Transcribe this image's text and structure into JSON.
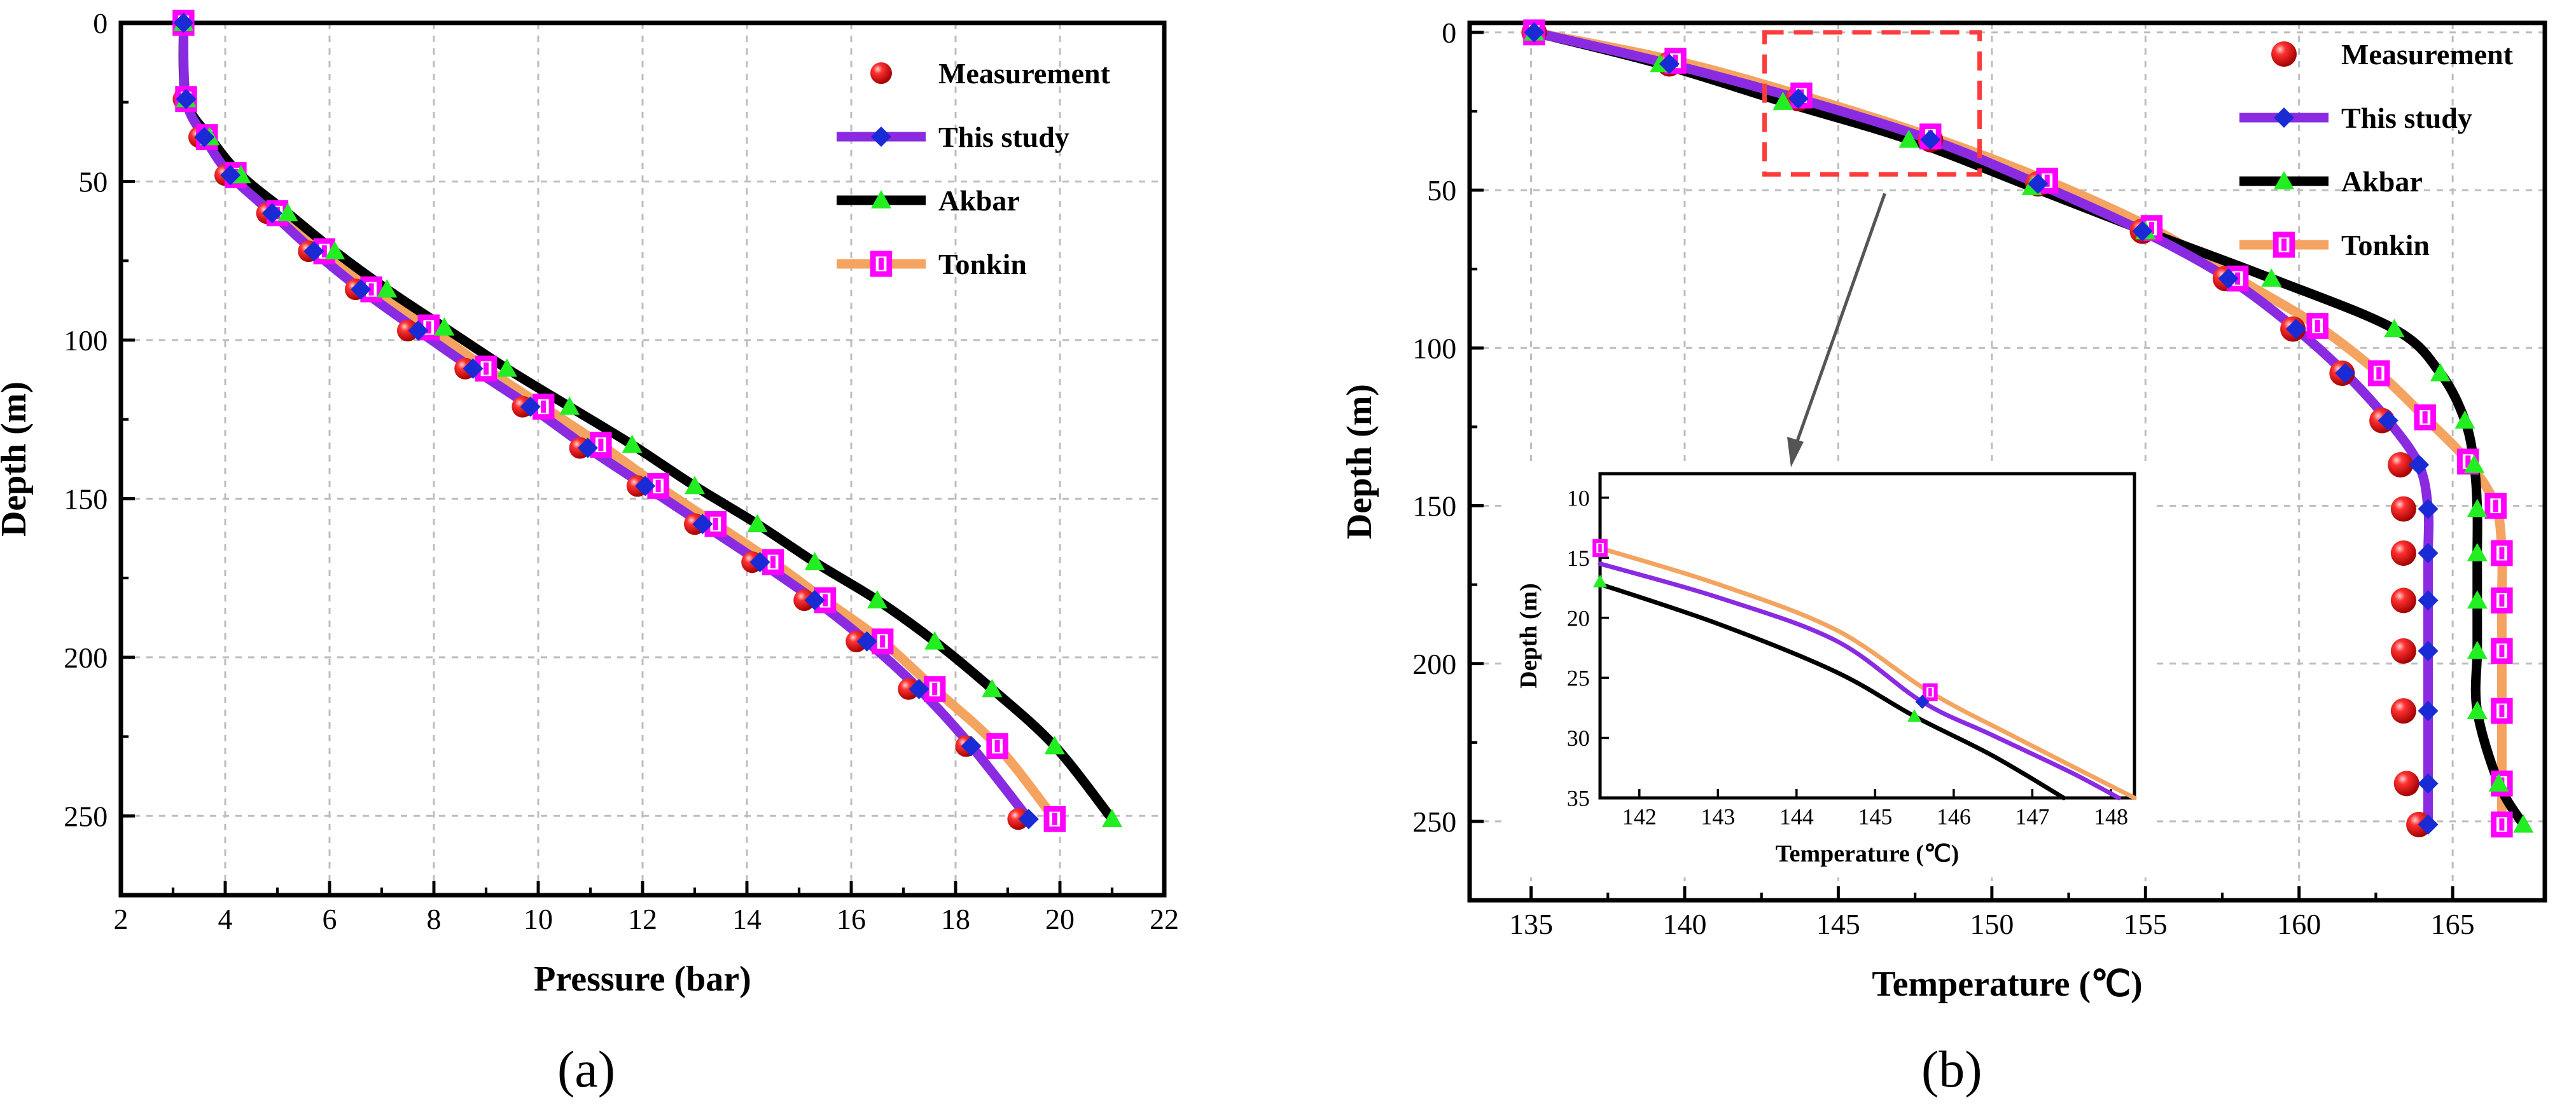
{
  "figure": {
    "colors": {
      "measurement": "#e60000",
      "this_study": "#8a2be2",
      "this_study_marker": "#1a2bd6",
      "akbar": "#000000",
      "akbar_marker": "#22ee22",
      "tonkin": "#f4a460",
      "tonkin_marker": "#ff00ff",
      "inset_box": "#ff3b3b",
      "grid": "#bdbdbd"
    },
    "panels": [
      {
        "label": "(a)"
      },
      {
        "label": "(b)"
      }
    ]
  },
  "chart_data": [
    {
      "type": "line",
      "panel": "(a)",
      "xlabel": "Pressure (bar)",
      "ylabel": "Depth (m)",
      "xlim": [
        2,
        22
      ],
      "ylim": [
        0,
        275
      ],
      "y_inverted": true,
      "xticks": [
        2,
        4,
        6,
        8,
        10,
        12,
        14,
        16,
        18,
        20,
        22
      ],
      "yticks": [
        0,
        50,
        100,
        150,
        200,
        250
      ],
      "grid": true,
      "legend_position": "top-right",
      "series": [
        {
          "name": "Measurement",
          "kind": "scatter",
          "marker": "sphere",
          "points": [
            [
              3.2,
              0
            ],
            [
              3.2,
              24
            ],
            [
              3.5,
              36
            ],
            [
              4.0,
              48
            ],
            [
              4.8,
              60
            ],
            [
              5.6,
              72
            ],
            [
              6.5,
              84
            ],
            [
              7.5,
              97
            ],
            [
              8.6,
              109
            ],
            [
              9.7,
              121
            ],
            [
              10.8,
              134
            ],
            [
              11.9,
              146
            ],
            [
              13.0,
              158
            ],
            [
              14.1,
              170
            ],
            [
              15.1,
              182
            ],
            [
              16.1,
              195
            ],
            [
              17.1,
              210
            ],
            [
              18.2,
              228
            ],
            [
              19.2,
              251
            ]
          ]
        },
        {
          "name": "This study",
          "kind": "line",
          "marker": "diamond",
          "points": [
            [
              3.2,
              0
            ],
            [
              3.25,
              24
            ],
            [
              3.6,
              36
            ],
            [
              4.1,
              48
            ],
            [
              4.9,
              60
            ],
            [
              5.7,
              72
            ],
            [
              6.6,
              84
            ],
            [
              7.7,
              97
            ],
            [
              8.75,
              109
            ],
            [
              9.85,
              121
            ],
            [
              10.95,
              134
            ],
            [
              12.05,
              146
            ],
            [
              13.15,
              158
            ],
            [
              14.25,
              170
            ],
            [
              15.3,
              182
            ],
            [
              16.3,
              195
            ],
            [
              17.3,
              210
            ],
            [
              18.3,
              228
            ],
            [
              19.4,
              251
            ]
          ]
        },
        {
          "name": "Akbar",
          "kind": "line",
          "marker": "triangle",
          "points": [
            [
              3.2,
              0
            ],
            [
              3.25,
              24
            ],
            [
              3.7,
              36
            ],
            [
              4.3,
              48
            ],
            [
              5.2,
              60
            ],
            [
              6.1,
              72
            ],
            [
              7.1,
              84
            ],
            [
              8.2,
              96
            ],
            [
              9.4,
              109
            ],
            [
              10.6,
              121
            ],
            [
              11.8,
              133
            ],
            [
              13.0,
              146
            ],
            [
              14.2,
              158
            ],
            [
              15.3,
              170
            ],
            [
              16.5,
              182
            ],
            [
              17.6,
              195
            ],
            [
              18.7,
              210
            ],
            [
              19.9,
              228
            ],
            [
              21.0,
              251
            ]
          ]
        },
        {
          "name": "Tonkin",
          "kind": "line",
          "marker": "square",
          "points": [
            [
              3.2,
              0
            ],
            [
              3.25,
              24
            ],
            [
              3.65,
              36
            ],
            [
              4.2,
              48
            ],
            [
              5.0,
              60
            ],
            [
              5.9,
              72
            ],
            [
              6.8,
              84
            ],
            [
              7.9,
              96
            ],
            [
              9.0,
              109
            ],
            [
              10.1,
              121
            ],
            [
              11.2,
              133
            ],
            [
              12.3,
              146
            ],
            [
              13.4,
              158
            ],
            [
              14.5,
              170
            ],
            [
              15.5,
              182
            ],
            [
              16.6,
              195
            ],
            [
              17.6,
              210
            ],
            [
              18.8,
              228
            ],
            [
              19.9,
              251
            ]
          ]
        }
      ]
    },
    {
      "type": "line",
      "panel": "(b)",
      "xlabel": "Temperature (℃)",
      "ylabel": "Depth (m)",
      "xlim": [
        133,
        168
      ],
      "ylim": [
        -3,
        275
      ],
      "y_inverted": true,
      "xticks": [
        135,
        140,
        145,
        150,
        155,
        160,
        165
      ],
      "yticks": [
        0,
        50,
        100,
        150,
        200,
        250
      ],
      "grid": true,
      "legend_position": "top-right",
      "zoom_box": {
        "x": [
          142.6,
          149.6
        ],
        "y": [
          0,
          45
        ]
      },
      "series": [
        {
          "name": "Measurement",
          "kind": "scatter",
          "marker": "sphere",
          "points": [
            [
              135.1,
              0
            ],
            [
              139.5,
              10
            ],
            [
              143.7,
              21
            ],
            [
              148.0,
              34
            ],
            [
              151.5,
              48
            ],
            [
              154.9,
              63
            ],
            [
              157.6,
              78
            ],
            [
              159.8,
              94
            ],
            [
              161.4,
              108
            ],
            [
              162.7,
              123
            ],
            [
              163.3,
              137
            ],
            [
              163.4,
              151
            ],
            [
              163.4,
              165
            ],
            [
              163.4,
              180
            ],
            [
              163.4,
              196
            ],
            [
              163.4,
              215
            ],
            [
              163.5,
              238
            ],
            [
              163.9,
              251
            ]
          ]
        },
        {
          "name": "This study",
          "kind": "line",
          "marker": "diamond",
          "points": [
            [
              135.1,
              0
            ],
            [
              139.5,
              10
            ],
            [
              143.7,
              21
            ],
            [
              148.0,
              34
            ],
            [
              151.5,
              48
            ],
            [
              154.9,
              63
            ],
            [
              157.7,
              78
            ],
            [
              159.9,
              94
            ],
            [
              161.5,
              108
            ],
            [
              162.9,
              123
            ],
            [
              163.9,
              137
            ],
            [
              164.2,
              151
            ],
            [
              164.2,
              165
            ],
            [
              164.2,
              180
            ],
            [
              164.2,
              196
            ],
            [
              164.2,
              215
            ],
            [
              164.2,
              238
            ],
            [
              164.2,
              251
            ]
          ]
        },
        {
          "name": "Akbar",
          "kind": "line",
          "marker": "triangle",
          "points": [
            [
              135.1,
              0
            ],
            [
              139.2,
              10
            ],
            [
              143.2,
              22
            ],
            [
              147.3,
              34
            ],
            [
              151.3,
              49
            ],
            [
              155.0,
              63
            ],
            [
              159.1,
              78
            ],
            [
              163.1,
              94
            ],
            [
              164.6,
              108
            ],
            [
              165.4,
              123
            ],
            [
              165.7,
              137
            ],
            [
              165.8,
              151
            ],
            [
              165.8,
              165
            ],
            [
              165.8,
              180
            ],
            [
              165.8,
              196
            ],
            [
              165.8,
              215
            ],
            [
              166.5,
              238
            ],
            [
              167.3,
              251
            ]
          ]
        },
        {
          "name": "Tonkin",
          "kind": "line",
          "marker": "square",
          "points": [
            [
              135.1,
              0
            ],
            [
              139.7,
              9
            ],
            [
              143.8,
              20
            ],
            [
              148.0,
              33
            ],
            [
              151.8,
              47
            ],
            [
              155.2,
              62
            ],
            [
              158.0,
              78
            ],
            [
              160.6,
              93
            ],
            [
              162.6,
              108
            ],
            [
              164.1,
              122
            ],
            [
              165.5,
              136
            ],
            [
              166.4,
              150
            ],
            [
              166.6,
              165
            ],
            [
              166.6,
              180
            ],
            [
              166.6,
              196
            ],
            [
              166.6,
              215
            ],
            [
              166.6,
              238
            ],
            [
              166.6,
              251
            ]
          ]
        }
      ],
      "inset": {
        "xlabel": "Temperature (℃)",
        "ylabel": "Depth (m)",
        "xlim": [
          141.5,
          148.3
        ],
        "ylim": [
          8,
          35
        ],
        "y_inverted": true,
        "xticks": [
          142,
          143,
          144,
          145,
          146,
          147,
          148
        ],
        "yticks": [
          10,
          15,
          20,
          25,
          30,
          35
        ],
        "series": [
          {
            "name": "This study",
            "kind": "line",
            "points": [
              [
                141.5,
                15.5
              ],
              [
                143,
                18.3
              ],
              [
                144.5,
                21.9
              ],
              [
                145.6,
                27.0
              ],
              [
                146.5,
                29.8
              ],
              [
                147.5,
                32.9
              ],
              [
                148.1,
                35
              ]
            ],
            "markers": [
              [
                145.6,
                27.0
              ]
            ]
          },
          {
            "name": "Akbar",
            "kind": "line",
            "points": [
              [
                141.5,
                17.2
              ],
              [
                143,
                20.5
              ],
              [
                144.5,
                24.5
              ],
              [
                145.5,
                28.2
              ],
              [
                146.5,
                31.5
              ],
              [
                147.4,
                35
              ]
            ],
            "markers": [
              [
                141.5,
                17.0
              ],
              [
                145.5,
                28.2
              ]
            ]
          },
          {
            "name": "Tonkin",
            "kind": "line",
            "points": [
              [
                141.5,
                14.2
              ],
              [
                143,
                17.2
              ],
              [
                144.5,
                21.0
              ],
              [
                145.7,
                26.2
              ],
              [
                146.8,
                30.0
              ],
              [
                148.3,
                35
              ]
            ],
            "markers": [
              [
                141.5,
                14.2
              ],
              [
                145.7,
                26.2
              ]
            ]
          }
        ]
      }
    }
  ]
}
